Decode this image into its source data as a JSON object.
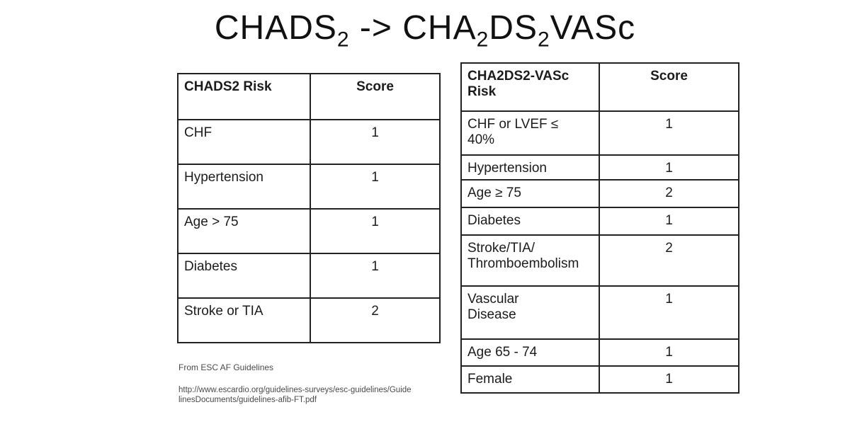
{
  "title": {
    "parts": [
      "CHADS",
      "2",
      " -> ",
      "CHA",
      "2",
      "DS",
      "2",
      "VASc"
    ]
  },
  "left_table": {
    "headers": [
      "CHADS2 Risk",
      "Score"
    ],
    "rows": [
      {
        "risk": "CHF",
        "score": "1"
      },
      {
        "risk": "Hypertension",
        "score": "1"
      },
      {
        "risk": "Age > 75",
        "score": "1"
      },
      {
        "risk": "Diabetes",
        "score": "1"
      },
      {
        "risk": "Stroke or TIA",
        "score": "2"
      }
    ]
  },
  "right_table": {
    "headers": [
      "CHA2DS2-VASc\nRisk",
      "Score"
    ],
    "rows": [
      {
        "risk": "CHF or LVEF ≤\n40%",
        "score": "1"
      },
      {
        "risk": "Hypertension",
        "score": "1"
      },
      {
        "risk": "Age ≥ 75",
        "score": "2"
      },
      {
        "risk": "Diabetes",
        "score": "1"
      },
      {
        "risk": "Stroke/TIA/\nThromboembolism",
        "score": "2"
      },
      {
        "risk": "Vascular\nDisease",
        "score": "1"
      },
      {
        "risk": "Age 65 - 74",
        "score": "1"
      },
      {
        "risk": "Female",
        "score": "1"
      }
    ]
  },
  "footer": {
    "source": "From ESC AF Guidelines",
    "url": "http://www.escardio.org/guidelines-surveys/esc-guidelines/GuidelinesDocuments/guidelines-afib-FT.pdf"
  }
}
